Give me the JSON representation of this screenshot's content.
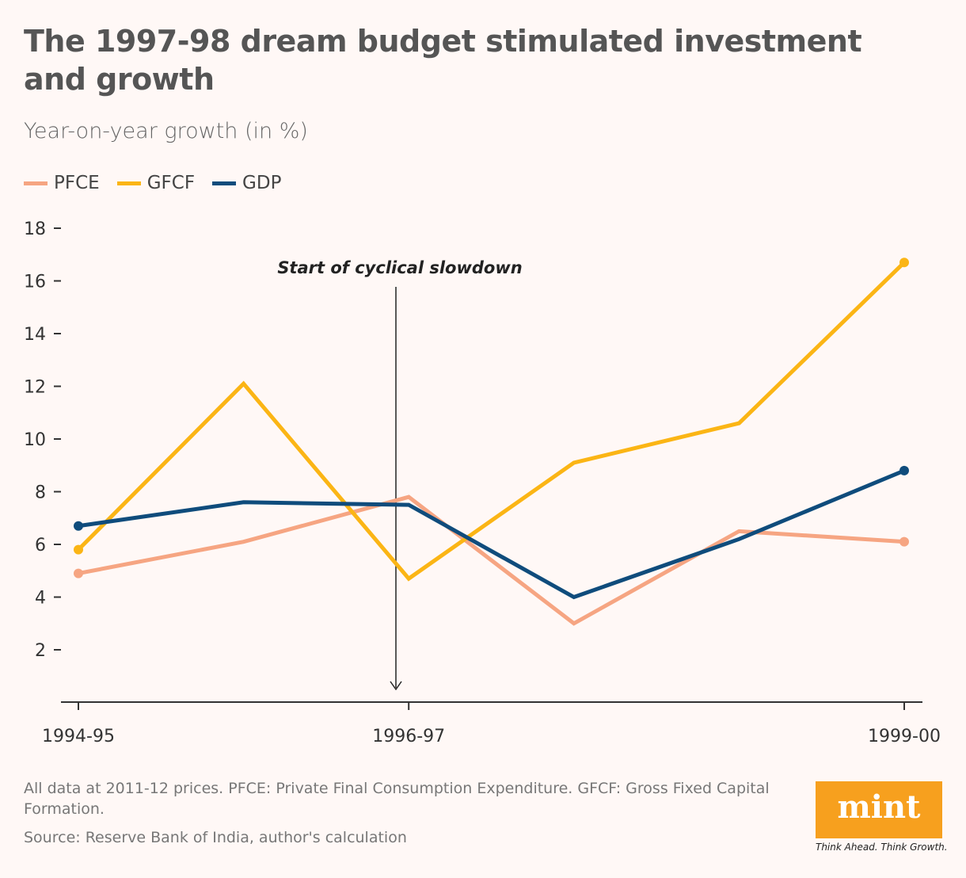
{
  "header": {
    "title": "The 1997-98 dream budget stimulated investment and growth",
    "subtitle": "Year-on-year growth (in %)"
  },
  "footer": {
    "note": "All data at 2011-12 prices. PFCE: Private Final Consumption Expenditure. GFCF: Gross Fixed Capital Formation.",
    "source": "Source: Reserve Bank of India, author's calculation",
    "logo_text": "mint",
    "tagline": "Think Ahead. Think Growth."
  },
  "chart_data": {
    "type": "line",
    "title": "The 1997-98 dream budget stimulated investment and growth",
    "ylabel": "Year-on-year growth (in %)",
    "categories": [
      "1994-95",
      "",
      "1996-97",
      "",
      "",
      "1999-00"
    ],
    "yticks": [
      2,
      4,
      6,
      8,
      10,
      12,
      14,
      16,
      18
    ],
    "ylim": [
      0,
      18
    ],
    "grid": false,
    "legend": "top-left",
    "series": [
      {
        "name": "PFCE",
        "color": "#f6a582",
        "values": [
          4.9,
          6.1,
          7.8,
          3.0,
          6.5,
          6.1
        ]
      },
      {
        "name": "GFCF",
        "color": "#fbb515",
        "values": [
          5.8,
          12.1,
          4.7,
          9.1,
          10.6,
          16.7
        ]
      },
      {
        "name": "GDP",
        "color": "#0f4c7c",
        "values": [
          6.7,
          7.6,
          7.5,
          4.0,
          6.2,
          8.8
        ]
      }
    ],
    "annotation": {
      "text": "Start of cyclical slowdown",
      "x_between": [
        "1996-97"
      ]
    }
  }
}
